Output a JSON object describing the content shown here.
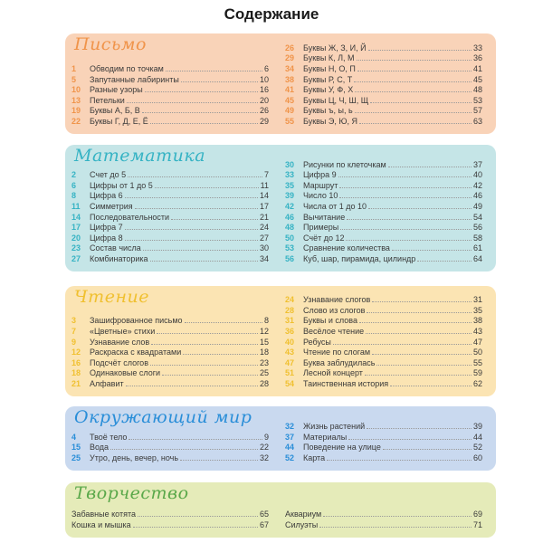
{
  "title": "Содержание",
  "sections": [
    {
      "id": "pismo",
      "heading": "Письмо",
      "bg": "#f9d3b8",
      "accent": "#f0944a",
      "left": [
        {
          "n": "1",
          "t": "Обводим по точкам",
          "p": "6"
        },
        {
          "n": "5",
          "t": "Запутанные лабиринты",
          "p": "10"
        },
        {
          "n": "10",
          "t": "Разные узоры",
          "p": "16"
        },
        {
          "n": "13",
          "t": "Петельки",
          "p": "20"
        },
        {
          "n": "19",
          "t": "Буквы А, Б, В",
          "p": "26"
        },
        {
          "n": "22",
          "t": "Буквы Г, Д, Е, Ё",
          "p": "29"
        }
      ],
      "right": [
        {
          "n": "26",
          "t": "Буквы Ж, З, И, Й",
          "p": "33"
        },
        {
          "n": "29",
          "t": "Буквы К, Л, М",
          "p": "36"
        },
        {
          "n": "34",
          "t": "Буквы Н, О, П",
          "p": "41"
        },
        {
          "n": "38",
          "t": "Буквы Р, С, Т",
          "p": "45"
        },
        {
          "n": "41",
          "t": "Буквы У, Ф, Х",
          "p": "48"
        },
        {
          "n": "45",
          "t": "Буквы Ц, Ч, Ш, Щ",
          "p": "53"
        },
        {
          "n": "49",
          "t": "Буквы ъ, ы, ь",
          "p": "57"
        },
        {
          "n": "55",
          "t": "Буквы Э, Ю, Я",
          "p": "63"
        }
      ]
    },
    {
      "id": "matematika",
      "heading": "Математика",
      "bg": "#c5e5e7",
      "accent": "#36b3c4",
      "left": [
        {
          "n": "2",
          "t": "Счет до 5",
          "p": "7"
        },
        {
          "n": "6",
          "t": "Цифры от 1 до 5",
          "p": "11"
        },
        {
          "n": "8",
          "t": "Цифра 6",
          "p": "14"
        },
        {
          "n": "11",
          "t": "Симметрия",
          "p": "17"
        },
        {
          "n": "14",
          "t": "Последовательности",
          "p": "21"
        },
        {
          "n": "17",
          "t": "Цифра 7",
          "p": "24"
        },
        {
          "n": "20",
          "t": "Цифра 8",
          "p": "27"
        },
        {
          "n": "23",
          "t": "Состав числа",
          "p": "30"
        },
        {
          "n": "27",
          "t": "Комбинаторика",
          "p": "34"
        }
      ],
      "right": [
        {
          "n": "30",
          "t": "Рисунки по клеточкам",
          "p": "37"
        },
        {
          "n": "33",
          "t": "Цифра 9",
          "p": "40"
        },
        {
          "n": "35",
          "t": "Маршрут",
          "p": "42"
        },
        {
          "n": "39",
          "t": "Число 10",
          "p": "46"
        },
        {
          "n": "42",
          "t": "Числа от 1 до 10",
          "p": "49"
        },
        {
          "n": "46",
          "t": "Вычитание",
          "p": "54"
        },
        {
          "n": "48",
          "t": "Примеры",
          "p": "56"
        },
        {
          "n": "50",
          "t": "Счёт до 12",
          "p": "58"
        },
        {
          "n": "53",
          "t": "Сравнение количества",
          "p": "61"
        },
        {
          "n": "56",
          "t": "Куб, шар, пирамида, цилиндр",
          "p": "64"
        }
      ]
    },
    {
      "id": "chtenie",
      "heading": "Чтение",
      "bg": "#fbe4b3",
      "accent": "#f0c030",
      "left": [
        {
          "n": "3",
          "t": "Зашифрованное письмо",
          "p": "8"
        },
        {
          "n": "7",
          "t": "«Цветные» стихи",
          "p": "12"
        },
        {
          "n": "9",
          "t": "Узнавание слов",
          "p": "15"
        },
        {
          "n": "12",
          "t": "Раскраска с квадратами",
          "p": "18"
        },
        {
          "n": "16",
          "t": "Подсчёт слогов",
          "p": "23"
        },
        {
          "n": "18",
          "t": "Одинаковые слоги",
          "p": "25"
        },
        {
          "n": "21",
          "t": "Алфавит",
          "p": "28"
        }
      ],
      "right": [
        {
          "n": "24",
          "t": "Узнавание слогов",
          "p": "31"
        },
        {
          "n": "28",
          "t": "Слово из слогов",
          "p": "35"
        },
        {
          "n": "31",
          "t": "Буквы и слова",
          "p": "38"
        },
        {
          "n": "36",
          "t": "Весёлое чтение",
          "p": "43"
        },
        {
          "n": "40",
          "t": "Ребусы",
          "p": "47"
        },
        {
          "n": "43",
          "t": "Чтение по слогам",
          "p": "50"
        },
        {
          "n": "47",
          "t": "Буква заблудилась",
          "p": "55"
        },
        {
          "n": "51",
          "t": "Лесной концерт",
          "p": "59"
        },
        {
          "n": "54",
          "t": "Таинственная история",
          "p": "62"
        }
      ]
    },
    {
      "id": "okruzhayushchiy-mir",
      "heading": "Окружающий мир",
      "bg": "#c9d9ef",
      "accent": "#2a8ed8",
      "left": [
        {
          "n": "4",
          "t": "Твоё тело",
          "p": "9"
        },
        {
          "n": "15",
          "t": "Вода",
          "p": "22"
        },
        {
          "n": "25",
          "t": "Утро, день, вечер, ночь",
          "p": "32"
        }
      ],
      "right": [
        {
          "n": "32",
          "t": "Жизнь растений",
          "p": "39"
        },
        {
          "n": "37",
          "t": "Материалы",
          "p": "44"
        },
        {
          "n": "44",
          "t": "Поведение на улице",
          "p": "52"
        },
        {
          "n": "52",
          "t": "Карта",
          "p": "60"
        }
      ]
    },
    {
      "id": "tvorchestvo",
      "heading": "Творчество",
      "bg": "#e5ebb9",
      "accent": "#5aa84a",
      "left": [
        {
          "t": "Забавные котята",
          "p": "65"
        },
        {
          "t": "Кошка и мышка",
          "p": "67"
        }
      ],
      "right": [
        {
          "t": "Аквариум",
          "p": "69"
        },
        {
          "t": "Силуэты",
          "p": "71"
        }
      ]
    }
  ]
}
